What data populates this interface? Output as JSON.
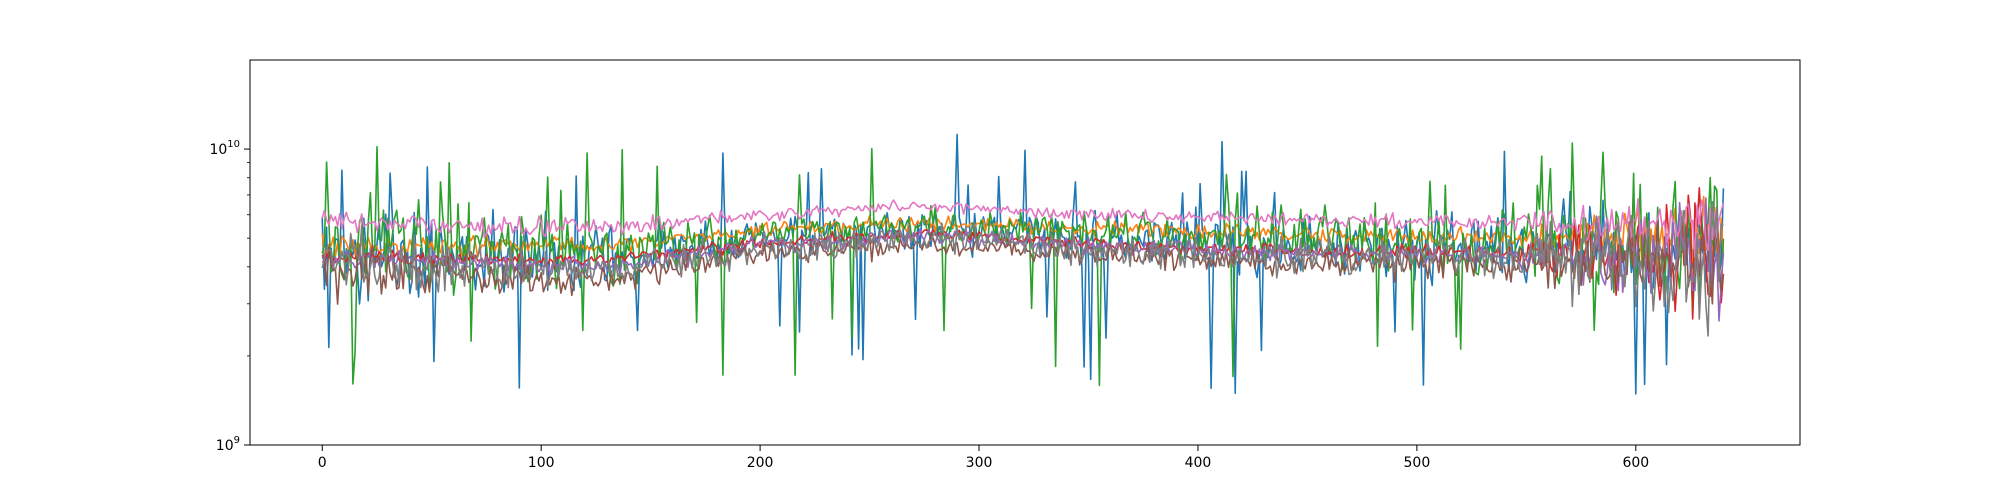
{
  "chart_data": {
    "type": "line",
    "title": "",
    "xlabel": "",
    "ylabel": "",
    "x_range": [
      -33,
      675
    ],
    "y_range": [
      1000000000,
      20000000000
    ],
    "y_scale": "log",
    "x_ticks": [
      0,
      100,
      200,
      300,
      400,
      500,
      600
    ],
    "x_tick_labels": [
      "0",
      "100",
      "200",
      "300",
      "400",
      "500",
      "600"
    ],
    "y_ticks": [
      {
        "value": 1000000000,
        "base": "10",
        "exponent": "9"
      },
      {
        "value": 10000000000,
        "base": "10",
        "exponent": "10"
      }
    ],
    "grid": false,
    "legend": "none",
    "n_points": 641,
    "series": [
      {
        "color": "#1f77b4",
        "baseline_anchors": [
          [
            0,
            4.4
          ],
          [
            130,
            4.2
          ],
          [
            200,
            5.0
          ],
          [
            280,
            5.4
          ],
          [
            350,
            5.0
          ],
          [
            450,
            4.7
          ],
          [
            550,
            4.7
          ],
          [
            640,
            4.6
          ]
        ],
        "noise": [
          [
            0,
            0.18
          ],
          [
            130,
            0.14
          ],
          [
            200,
            0.06
          ],
          [
            330,
            0.1
          ],
          [
            540,
            0.14
          ],
          [
            641,
            0.22
          ]
        ],
        "spike_prob": 0.05
      },
      {
        "color": "#ff7f0e",
        "baseline_anchors": [
          [
            0,
            4.7
          ],
          [
            130,
            4.7
          ],
          [
            200,
            5.3
          ],
          [
            280,
            5.6
          ],
          [
            350,
            5.4
          ],
          [
            450,
            5.1
          ],
          [
            550,
            5.0
          ],
          [
            640,
            5.0
          ]
        ],
        "noise": [
          [
            0,
            0.05
          ],
          [
            130,
            0.03
          ],
          [
            300,
            0.03
          ],
          [
            540,
            0.04
          ],
          [
            641,
            0.15
          ]
        ],
        "spike_prob": 0.0
      },
      {
        "color": "#2ca02c",
        "baseline_anchors": [
          [
            0,
            4.8
          ],
          [
            130,
            4.6
          ],
          [
            200,
            5.2
          ],
          [
            280,
            5.5
          ],
          [
            350,
            5.2
          ],
          [
            450,
            4.9
          ],
          [
            550,
            4.8
          ],
          [
            640,
            5.0
          ]
        ],
        "noise": [
          [
            0,
            0.2
          ],
          [
            130,
            0.16
          ],
          [
            200,
            0.06
          ],
          [
            330,
            0.08
          ],
          [
            540,
            0.16
          ],
          [
            641,
            0.3
          ]
        ],
        "spike_prob": 0.05
      },
      {
        "color": "#d62728",
        "baseline_anchors": [
          [
            0,
            4.3
          ],
          [
            130,
            4.2
          ],
          [
            200,
            4.8
          ],
          [
            280,
            5.2
          ],
          [
            350,
            4.8
          ],
          [
            450,
            4.5
          ],
          [
            550,
            4.5
          ],
          [
            640,
            4.4
          ]
        ],
        "noise": [
          [
            0,
            0.03
          ],
          [
            300,
            0.02
          ],
          [
            540,
            0.03
          ],
          [
            641,
            0.25
          ]
        ],
        "spike_prob": 0.0
      },
      {
        "color": "#9467bd",
        "baseline_anchors": [
          [
            0,
            4.3
          ],
          [
            130,
            4.0
          ],
          [
            200,
            4.7
          ],
          [
            280,
            5.1
          ],
          [
            350,
            4.7
          ],
          [
            450,
            4.4
          ],
          [
            550,
            4.4
          ],
          [
            640,
            4.3
          ]
        ],
        "noise": [
          [
            0,
            0.04
          ],
          [
            300,
            0.03
          ],
          [
            540,
            0.04
          ],
          [
            641,
            0.25
          ]
        ],
        "spike_prob": 0.0
      },
      {
        "color": "#8c564b",
        "baseline_anchors": [
          [
            0,
            3.9
          ],
          [
            130,
            3.6
          ],
          [
            200,
            4.4
          ],
          [
            280,
            4.8
          ],
          [
            350,
            4.4
          ],
          [
            450,
            4.1
          ],
          [
            550,
            4.1
          ],
          [
            640,
            4.1
          ]
        ],
        "noise": [
          [
            0,
            0.1
          ],
          [
            130,
            0.05
          ],
          [
            300,
            0.04
          ],
          [
            540,
            0.06
          ],
          [
            641,
            0.2
          ]
        ],
        "spike_prob": 0.0
      },
      {
        "color": "#e377c2",
        "baseline_anchors": [
          [
            0,
            5.7
          ],
          [
            130,
            5.4
          ],
          [
            200,
            6.0
          ],
          [
            260,
            6.4
          ],
          [
            300,
            6.3
          ],
          [
            350,
            6.0
          ],
          [
            450,
            5.8
          ],
          [
            550,
            5.6
          ],
          [
            640,
            5.5
          ]
        ],
        "noise": [
          [
            0,
            0.04
          ],
          [
            300,
            0.02
          ],
          [
            540,
            0.03
          ],
          [
            641,
            0.12
          ]
        ],
        "spike_prob": 0.0
      },
      {
        "color": "#7f7f7f",
        "baseline_anchors": [
          [
            0,
            4.2
          ],
          [
            130,
            3.9
          ],
          [
            200,
            4.5
          ],
          [
            280,
            5.0
          ],
          [
            350,
            4.6
          ],
          [
            450,
            4.3
          ],
          [
            550,
            4.3
          ],
          [
            640,
            4.3
          ]
        ],
        "noise": [
          [
            0,
            0.12
          ],
          [
            130,
            0.06
          ],
          [
            300,
            0.06
          ],
          [
            540,
            0.08
          ],
          [
            641,
            0.3
          ]
        ],
        "spike_prob": 0.0
      }
    ]
  }
}
